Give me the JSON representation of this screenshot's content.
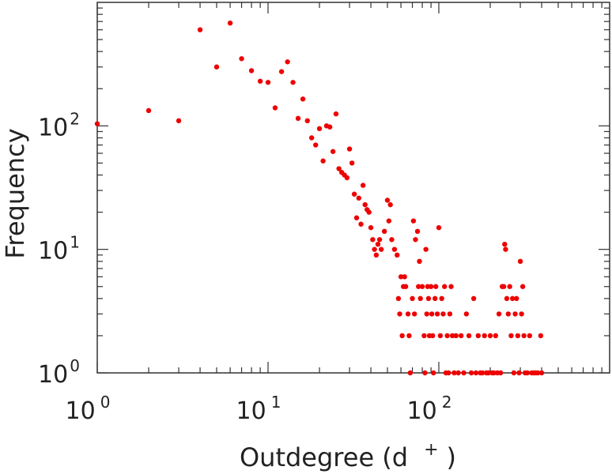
{
  "chart_data": {
    "type": "scatter",
    "title": "",
    "xlabel": "Outdegree (d",
    "xlabel_superscript": "+",
    "xlabel_close": ")",
    "ylabel": "Frequency",
    "x_scale": "log",
    "y_scale": "log",
    "xlim": [
      1,
      1000
    ],
    "ylim": [
      1,
      1000
    ],
    "x_ticks": [
      {
        "base": "10",
        "exp": "0",
        "value": 1
      },
      {
        "base": "10",
        "exp": "1",
        "value": 10
      },
      {
        "base": "10",
        "exp": "2",
        "value": 100
      }
    ],
    "y_ticks": [
      {
        "base": "10",
        "exp": "0",
        "value": 1
      },
      {
        "base": "10",
        "exp": "1",
        "value": 10
      },
      {
        "base": "10",
        "exp": "2",
        "value": 100
      }
    ],
    "grid": false,
    "marker_color": "#ee0000",
    "points": [
      [
        1,
        104
      ],
      [
        2,
        133
      ],
      [
        3,
        110
      ],
      [
        4,
        600
      ],
      [
        5,
        300
      ],
      [
        6,
        680
      ],
      [
        7,
        350
      ],
      [
        8,
        280
      ],
      [
        9,
        230
      ],
      [
        10,
        225
      ],
      [
        11,
        140
      ],
      [
        12,
        275
      ],
      [
        13,
        330
      ],
      [
        14,
        225
      ],
      [
        15,
        115
      ],
      [
        16,
        165
      ],
      [
        17,
        110
      ],
      [
        18,
        80
      ],
      [
        19,
        70
      ],
      [
        20,
        95
      ],
      [
        21,
        52
      ],
      [
        22,
        100
      ],
      [
        23,
        98
      ],
      [
        24,
        62
      ],
      [
        25,
        125
      ],
      [
        26,
        45
      ],
      [
        27,
        42
      ],
      [
        28,
        40
      ],
      [
        29,
        38
      ],
      [
        30,
        65
      ],
      [
        31,
        50
      ],
      [
        32,
        28
      ],
      [
        33,
        18
      ],
      [
        34,
        26
      ],
      [
        35,
        16
      ],
      [
        36,
        33
      ],
      [
        37,
        23
      ],
      [
        38,
        21
      ],
      [
        39,
        20
      ],
      [
        40,
        15
      ],
      [
        41,
        12
      ],
      [
        42,
        10
      ],
      [
        43,
        9
      ],
      [
        44,
        11
      ],
      [
        45,
        12
      ],
      [
        46,
        10
      ],
      [
        48,
        14
      ],
      [
        50,
        25
      ],
      [
        51,
        17
      ],
      [
        52,
        23
      ],
      [
        53,
        12
      ],
      [
        55,
        10
      ],
      [
        57,
        9
      ],
      [
        60,
        6
      ],
      [
        62,
        5
      ],
      [
        58,
        4
      ],
      [
        59,
        3
      ],
      [
        61,
        2
      ],
      [
        63,
        6
      ],
      [
        64,
        5
      ],
      [
        66,
        3
      ],
      [
        67,
        2
      ],
      [
        68,
        1
      ],
      [
        70,
        4
      ],
      [
        71,
        17
      ],
      [
        72,
        3
      ],
      [
        73,
        12
      ],
      [
        75,
        14
      ],
      [
        76,
        5
      ],
      [
        77,
        8
      ],
      [
        78,
        4
      ],
      [
        80,
        5
      ],
      [
        82,
        2
      ],
      [
        83,
        1
      ],
      [
        84,
        10
      ],
      [
        85,
        3
      ],
      [
        86,
        5
      ],
      [
        87,
        4
      ],
      [
        88,
        2
      ],
      [
        90,
        5
      ],
      [
        91,
        3
      ],
      [
        92,
        2
      ],
      [
        93,
        1
      ],
      [
        95,
        4
      ],
      [
        96,
        5
      ],
      [
        98,
        3
      ],
      [
        100,
        15
      ],
      [
        102,
        2
      ],
      [
        104,
        4
      ],
      [
        106,
        3
      ],
      [
        108,
        5
      ],
      [
        110,
        1
      ],
      [
        112,
        2
      ],
      [
        114,
        1
      ],
      [
        116,
        3
      ],
      [
        118,
        5
      ],
      [
        120,
        2
      ],
      [
        123,
        1
      ],
      [
        126,
        2
      ],
      [
        130,
        1
      ],
      [
        135,
        2
      ],
      [
        140,
        1
      ],
      [
        145,
        3
      ],
      [
        150,
        2
      ],
      [
        155,
        1
      ],
      [
        160,
        4
      ],
      [
        165,
        1
      ],
      [
        170,
        2
      ],
      [
        175,
        1
      ],
      [
        180,
        1
      ],
      [
        185,
        2
      ],
      [
        190,
        1
      ],
      [
        195,
        1
      ],
      [
        200,
        2
      ],
      [
        205,
        1
      ],
      [
        210,
        1
      ],
      [
        215,
        2
      ],
      [
        220,
        1
      ],
      [
        225,
        3
      ],
      [
        230,
        1
      ],
      [
        235,
        5
      ],
      [
        240,
        5
      ],
      [
        243,
        11
      ],
      [
        246,
        10
      ],
      [
        250,
        4
      ],
      [
        255,
        3
      ],
      [
        260,
        5
      ],
      [
        265,
        2
      ],
      [
        270,
        4
      ],
      [
        275,
        1
      ],
      [
        280,
        3
      ],
      [
        285,
        4
      ],
      [
        290,
        2
      ],
      [
        295,
        1
      ],
      [
        300,
        8
      ],
      [
        305,
        3
      ],
      [
        310,
        5
      ],
      [
        315,
        2
      ],
      [
        320,
        1
      ],
      [
        330,
        1
      ],
      [
        340,
        2
      ],
      [
        350,
        1
      ],
      [
        360,
        1
      ],
      [
        370,
        1
      ],
      [
        380,
        1
      ],
      [
        395,
        2
      ],
      [
        400,
        1
      ]
    ]
  }
}
